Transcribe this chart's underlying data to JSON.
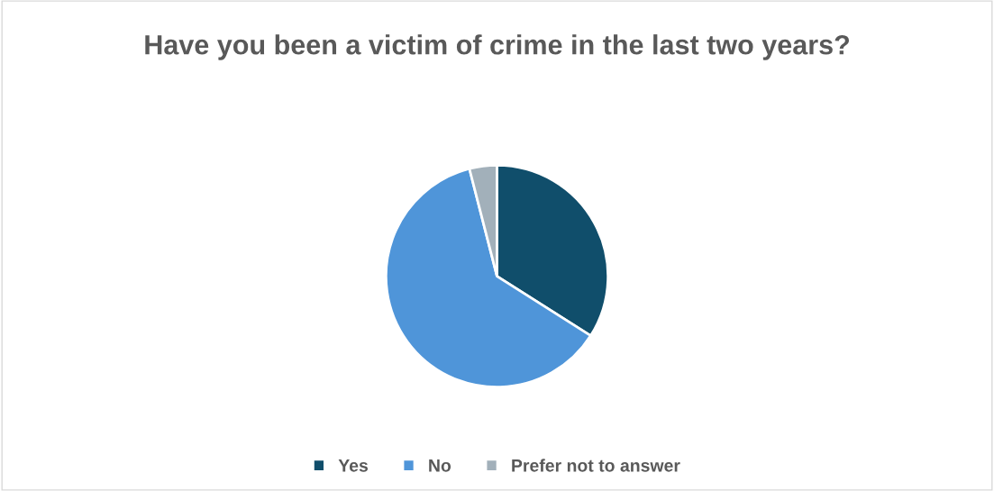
{
  "chart_data": {
    "type": "pie",
    "title": "Have you been a victim of crime in the last two years?",
    "categories": [
      "Yes",
      "No",
      "Prefer not to answer"
    ],
    "values": [
      34,
      62,
      4
    ],
    "colors": [
      "#104e6b",
      "#4f95d9",
      "#a2b0ba"
    ],
    "legend": "bottom"
  }
}
